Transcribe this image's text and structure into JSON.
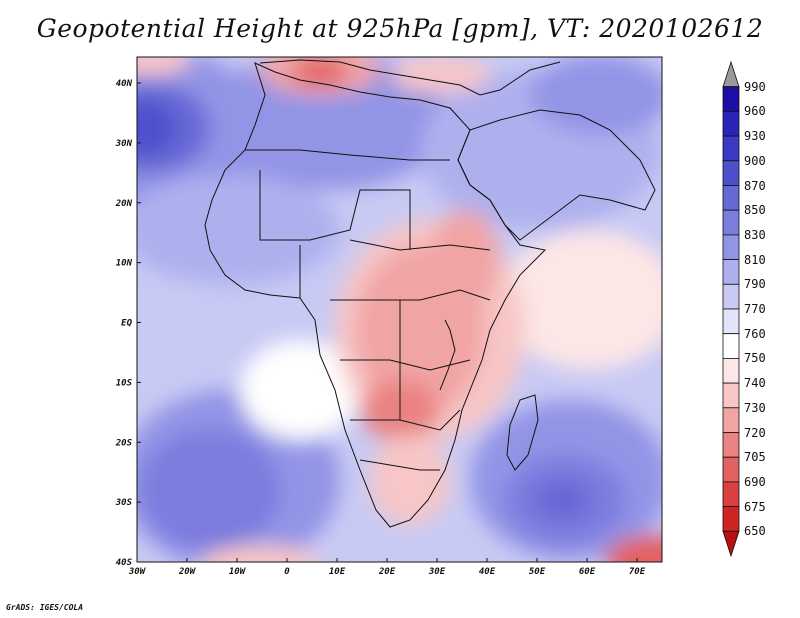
{
  "title": "Geopotential Height at 925hPa [gpm], VT: 2020102612",
  "credit": "GrADS: IGES/COLA",
  "map": {
    "lon_range": [
      -30,
      75
    ],
    "lat_range": [
      -40,
      45
    ],
    "x_ticks": [
      "30W",
      "20W",
      "10W",
      "0",
      "10E",
      "20E",
      "30E",
      "40E",
      "50E",
      "60E",
      "70E"
    ],
    "y_ticks": [
      "40N",
      "30N",
      "20N",
      "10N",
      "EQ",
      "10S",
      "20S",
      "30S",
      "40S"
    ]
  },
  "colorbar": {
    "labels": [
      "990",
      "960",
      "930",
      "900",
      "870",
      "850",
      "830",
      "810",
      "790",
      "770",
      "760",
      "750",
      "740",
      "730",
      "720",
      "705",
      "690",
      "675",
      "650"
    ],
    "colors": [
      "#999999",
      "#1c0ea6",
      "#2b24b8",
      "#3c3ac4",
      "#4d50cc",
      "#6668d6",
      "#7a7cde",
      "#9294e6",
      "#aeb0ee",
      "#c8caf4",
      "#e3e4fa",
      "#ffffff",
      "#fde6e6",
      "#f8c6c6",
      "#f1a4a4",
      "#ea8282",
      "#e26262",
      "#da4040",
      "#cf2424",
      "#b81010"
    ]
  }
}
